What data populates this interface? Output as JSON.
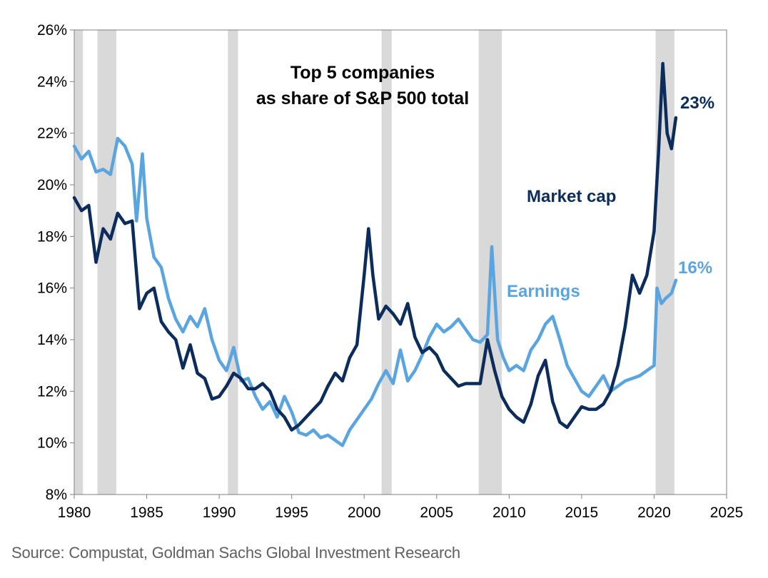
{
  "source": "Source: Compustat, Goldman Sachs Global Investment Research",
  "chart_data": {
    "type": "line",
    "title_lines": [
      "Top 5 companies",
      "as share of S&P 500 total"
    ],
    "xlim": [
      1980,
      2025
    ],
    "ylim": [
      8,
      26
    ],
    "x_ticks": [
      1980,
      1985,
      1990,
      1995,
      2000,
      2005,
      2010,
      2015,
      2020,
      2025
    ],
    "y_ticks": [
      8,
      10,
      12,
      14,
      16,
      18,
      20,
      22,
      24,
      26
    ],
    "y_tick_labels": [
      "8%",
      "10%",
      "12%",
      "14%",
      "16%",
      "18%",
      "20%",
      "22%",
      "24%",
      "26%"
    ],
    "recessions": [
      [
        1980.0,
        1980.6
      ],
      [
        1981.6,
        1982.9
      ],
      [
        1990.6,
        1991.3
      ],
      [
        2001.2,
        2001.9
      ],
      [
        2007.9,
        2009.5
      ],
      [
        2020.1,
        2021.4
      ]
    ],
    "colors": {
      "market_cap": "#0c2d5b",
      "earnings": "#5aa5e0",
      "recession": "#d9d9d9"
    },
    "series": [
      {
        "name": "Market cap",
        "end_label": "23%",
        "x": [
          1980.0,
          1980.5,
          1981.0,
          1981.5,
          1982.0,
          1982.5,
          1983.0,
          1983.5,
          1984.0,
          1984.5,
          1985.0,
          1985.5,
          1986.0,
          1986.5,
          1987.0,
          1987.5,
          1988.0,
          1988.5,
          1989.0,
          1989.5,
          1990.0,
          1990.5,
          1991.0,
          1991.5,
          1992.0,
          1992.5,
          1993.0,
          1993.5,
          1994.0,
          1994.5,
          1995.0,
          1995.5,
          1996.0,
          1996.5,
          1997.0,
          1997.5,
          1998.0,
          1998.5,
          1999.0,
          1999.5,
          2000.0,
          2000.3,
          2000.6,
          2001.0,
          2001.5,
          2002.0,
          2002.5,
          2003.0,
          2003.5,
          2004.0,
          2004.5,
          2005.0,
          2005.5,
          2006.0,
          2006.5,
          2007.0,
          2007.5,
          2008.0,
          2008.5,
          2009.0,
          2009.5,
          2010.0,
          2010.5,
          2011.0,
          2011.5,
          2012.0,
          2012.5,
          2013.0,
          2013.5,
          2014.0,
          2014.5,
          2015.0,
          2015.5,
          2016.0,
          2016.5,
          2017.0,
          2017.5,
          2018.0,
          2018.5,
          2019.0,
          2019.5,
          2020.0,
          2020.3,
          2020.6,
          2020.9,
          2021.2,
          2021.5
        ],
        "values": [
          19.5,
          19.0,
          19.2,
          17.0,
          18.3,
          17.9,
          18.9,
          18.5,
          18.6,
          15.2,
          15.8,
          16.0,
          14.7,
          14.3,
          14.0,
          12.9,
          13.8,
          12.7,
          12.5,
          11.7,
          11.8,
          12.2,
          12.7,
          12.5,
          12.1,
          12.1,
          12.3,
          12.0,
          11.3,
          11.0,
          10.5,
          10.7,
          11.0,
          11.3,
          11.6,
          12.2,
          12.7,
          12.4,
          13.3,
          13.8,
          16.5,
          18.3,
          16.5,
          14.8,
          15.3,
          15.0,
          14.6,
          15.4,
          14.1,
          13.5,
          13.7,
          13.4,
          12.8,
          12.5,
          12.2,
          12.3,
          12.3,
          12.3,
          14.0,
          12.8,
          11.8,
          11.3,
          11.0,
          10.8,
          11.5,
          12.6,
          13.2,
          11.6,
          10.8,
          10.6,
          11.0,
          11.4,
          11.3,
          11.3,
          11.5,
          12.0,
          13.0,
          14.5,
          16.5,
          15.8,
          16.5,
          18.2,
          21.2,
          24.7,
          22.0,
          21.4,
          22.6
        ]
      },
      {
        "name": "Earnings",
        "end_label": "16%",
        "x": [
          1980.0,
          1980.5,
          1981.0,
          1981.5,
          1982.0,
          1982.5,
          1983.0,
          1983.5,
          1984.0,
          1984.3,
          1984.7,
          1985.0,
          1985.5,
          1986.0,
          1986.5,
          1987.0,
          1987.5,
          1988.0,
          1988.5,
          1989.0,
          1989.5,
          1990.0,
          1990.5,
          1991.0,
          1991.5,
          1992.0,
          1992.5,
          1993.0,
          1993.5,
          1994.0,
          1994.5,
          1995.0,
          1995.5,
          1996.0,
          1996.5,
          1997.0,
          1997.5,
          1998.0,
          1998.5,
          1999.0,
          1999.5,
          2000.0,
          2000.5,
          2001.0,
          2001.5,
          2002.0,
          2002.5,
          2003.0,
          2003.5,
          2004.0,
          2004.5,
          2005.0,
          2005.5,
          2006.0,
          2006.5,
          2007.0,
          2007.5,
          2008.0,
          2008.5,
          2008.8,
          2009.2,
          2009.6,
          2010.0,
          2010.5,
          2011.0,
          2011.5,
          2012.0,
          2012.5,
          2013.0,
          2013.5,
          2014.0,
          2014.5,
          2015.0,
          2015.5,
          2016.0,
          2016.5,
          2017.0,
          2017.5,
          2018.0,
          2018.5,
          2019.0,
          2019.5,
          2020.0,
          2020.2,
          2020.5,
          2020.8,
          2021.2,
          2021.5
        ],
        "values": [
          21.5,
          21.0,
          21.3,
          20.5,
          20.6,
          20.4,
          21.8,
          21.5,
          20.8,
          18.6,
          21.2,
          18.7,
          17.2,
          16.8,
          15.6,
          14.8,
          14.3,
          14.9,
          14.5,
          15.2,
          14.0,
          13.2,
          12.8,
          13.7,
          12.4,
          12.5,
          11.8,
          11.3,
          11.6,
          11.0,
          11.8,
          11.2,
          10.4,
          10.3,
          10.5,
          10.2,
          10.3,
          10.1,
          9.9,
          10.5,
          10.9,
          11.3,
          11.7,
          12.3,
          12.8,
          12.3,
          13.6,
          12.4,
          12.8,
          13.4,
          14.1,
          14.6,
          14.3,
          14.5,
          14.8,
          14.4,
          14.0,
          13.9,
          14.2,
          17.6,
          14.0,
          13.3,
          12.8,
          13.0,
          12.8,
          13.6,
          14.0,
          14.6,
          14.9,
          14.0,
          13.0,
          12.5,
          12.0,
          11.8,
          12.2,
          12.6,
          12.0,
          12.2,
          12.4,
          12.5,
          12.6,
          12.8,
          13.0,
          16.0,
          15.4,
          15.6,
          15.8,
          16.3
        ]
      }
    ]
  }
}
